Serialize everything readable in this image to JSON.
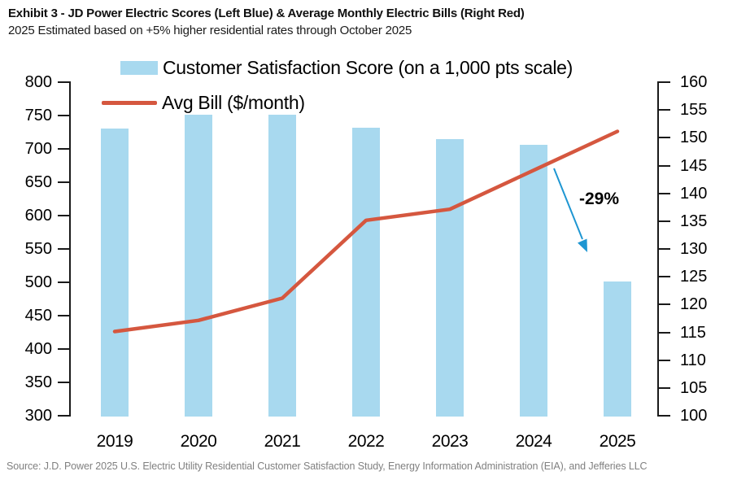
{
  "header": {
    "title": "Exhibit 3 - JD Power Electric Scores (Left Blue) & Average Monthly Electric Bills (Right Red)",
    "subtitle": "2025 Estimated based on +5% higher residential rates through October 2025"
  },
  "legend": {
    "items": [
      {
        "label": "Customer Satisfaction Score (on a 1,000 pts scale)",
        "swatch": "bar-swatch"
      },
      {
        "label": "Avg Bill ($/month)",
        "swatch": "line-swatch"
      }
    ]
  },
  "chart_data": {
    "type": "bar+line",
    "title": "Exhibit 3 - JD Power Electric Scores (Left Blue) & Average Monthly Electric Bills (Right Red)",
    "categories": [
      "2019",
      "2020",
      "2021",
      "2022",
      "2023",
      "2024",
      "2025"
    ],
    "series": [
      {
        "name": "Customer Satisfaction Score (on a 1,000 pts scale)",
        "type": "bar",
        "axis": "left",
        "color": "#A8D9EF",
        "values": [
          729,
          750,
          750,
          730,
          714,
          705,
          500
        ]
      },
      {
        "name": "Avg Bill ($/month)",
        "type": "line",
        "axis": "right",
        "color": "#D5573F",
        "values": [
          115,
          117,
          121,
          135,
          137,
          144,
          151
        ]
      }
    ],
    "left_axis": {
      "min": 300,
      "max": 800,
      "step": 50,
      "ticks": [
        800,
        750,
        700,
        650,
        600,
        550,
        500,
        450,
        400,
        350,
        300
      ]
    },
    "right_axis": {
      "min": 100,
      "max": 160,
      "step": 5,
      "ticks": [
        160,
        155,
        150,
        145,
        140,
        135,
        130,
        125,
        120,
        115,
        110,
        105,
        100
      ]
    },
    "grid": "off",
    "legend_position": "top",
    "annotation": {
      "text": "-29%",
      "arrow_color": "#1E96D2",
      "from_value": 705,
      "to_value": 500
    }
  },
  "footer": {
    "source": "Source: J.D. Power 2025 U.S. Electric Utility Residential Customer Satisfaction Study, Energy Information Administration (EIA), and Jefferies LLC"
  }
}
